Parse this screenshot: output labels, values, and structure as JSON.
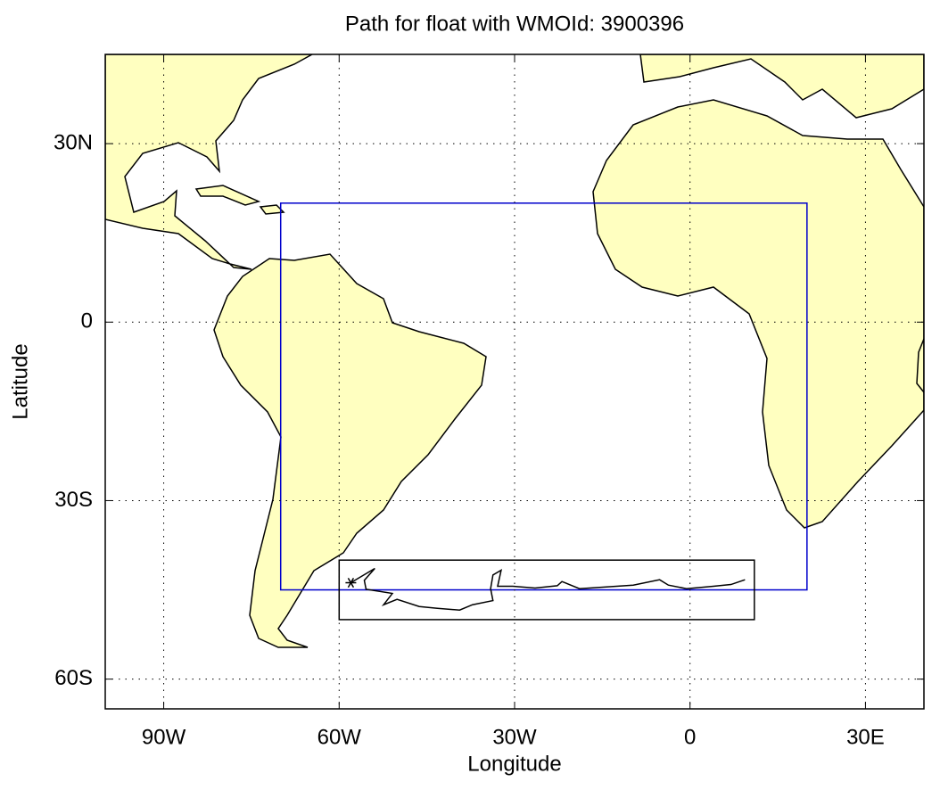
{
  "chart_data": {
    "type": "map",
    "title": "Path for float with WMOId: 3900396",
    "x_label": "Longitude",
    "y_label": "Latitude",
    "xlim": [
      -100,
      40
    ],
    "ylim": [
      -65,
      45
    ],
    "xticks": [
      {
        "value": -90,
        "label": "90W"
      },
      {
        "value": -60,
        "label": "60W"
      },
      {
        "value": -30,
        "label": "30W"
      },
      0,
      {
        "value": 30,
        "label": "30E"
      }
    ],
    "yticks": [
      {
        "value": 30,
        "label": "30N"
      },
      0,
      {
        "value": -30,
        "label": "30S"
      },
      {
        "value": -60,
        "label": "60S"
      }
    ],
    "grid": true,
    "land_color": "#ffffc0",
    "regions": [
      {
        "xlim": [
          -70,
          20
        ],
        "ylim": [
          -45,
          20
        ],
        "color": "#0000cc"
      },
      {
        "xlim": [
          -60,
          11
        ],
        "ylim": [
          -50,
          -40
        ],
        "color": "#000000"
      }
    ],
    "series": [
      {
        "color": "#000000",
        "x": [
          -58.0,
          -53.9,
          -55.7,
          -55.4,
          -50.9,
          -52.4,
          -50.1,
          -46.3,
          -43.2,
          -39.4,
          -37.2,
          -33.7,
          -34.1,
          -33.7,
          -32.3,
          -32.9,
          -30.3,
          -26.5,
          -22.7,
          -21.9,
          -18.9,
          -14.3,
          -9.7,
          -5.2,
          -3.7,
          -0.6,
          4.0,
          7.0,
          9.4
        ],
        "values": [
          -43.8,
          -41.4,
          -43.4,
          -44.9,
          -45.6,
          -47.5,
          -46.6,
          -47.8,
          -48.1,
          -48.4,
          -47.5,
          -46.8,
          -44.8,
          -42.5,
          -41.7,
          -44.4,
          -44.4,
          -44.7,
          -44.3,
          -43.6,
          -44.8,
          -44.5,
          -44.2,
          -43.3,
          -44.2,
          -44.8,
          -44.4,
          -44.1,
          -43.3
        ]
      }
    ]
  }
}
